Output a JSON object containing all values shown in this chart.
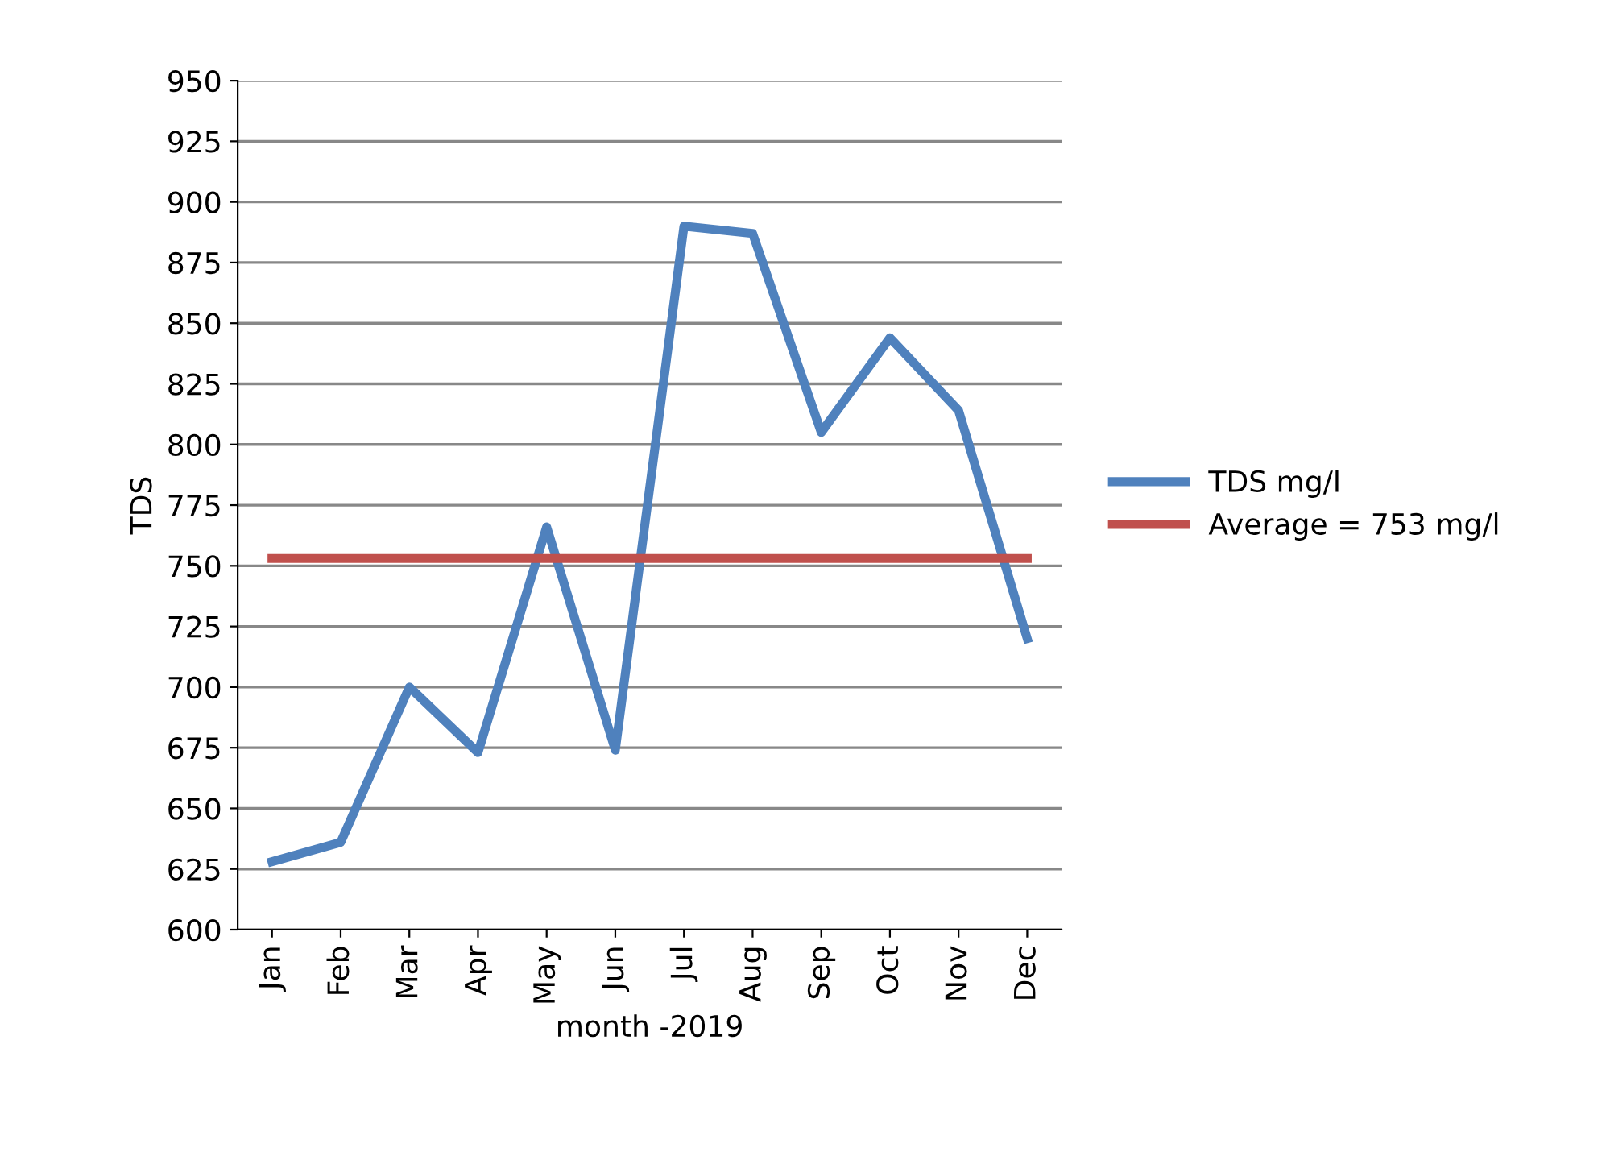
{
  "chart_data": {
    "type": "line",
    "xlabel": "month -2019",
    "ylabel": "TDS",
    "categories": [
      "Jan",
      "Feb",
      "Mar",
      "Apr",
      "May",
      "Jun",
      "Jul",
      "Aug",
      "Sep",
      "Oct",
      "Nov",
      "Dec"
    ],
    "series": [
      {
        "name": "TDS mg/l",
        "color": "#4f81bd",
        "values": [
          628,
          636,
          700,
          673,
          766,
          674,
          890,
          887,
          805,
          844,
          814,
          720
        ]
      },
      {
        "name": "Average = 753 mg/l",
        "color": "#c0504d",
        "values": [
          753,
          753,
          753,
          753,
          753,
          753,
          753,
          753,
          753,
          753,
          753,
          753
        ]
      }
    ],
    "ylim": [
      600,
      950
    ],
    "yticks": [
      600,
      625,
      650,
      675,
      700,
      725,
      750,
      775,
      800,
      825,
      850,
      875,
      900,
      925,
      950
    ],
    "grid": "y",
    "legend": "right",
    "marker": "none",
    "line_style": "solid"
  }
}
